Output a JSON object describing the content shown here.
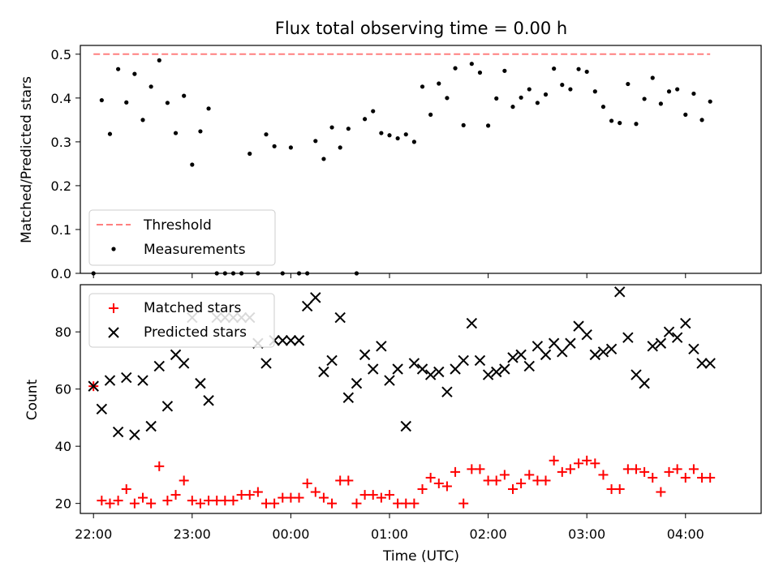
{
  "figure_title": "Flux total observing time = 0.00 h",
  "colors": {
    "threshold": "#ff7f7f",
    "measurement": "#000000",
    "matched": "#ff0000",
    "predicted": "#000000"
  },
  "chart_data": [
    {
      "type": "scatter",
      "ylabel": "Matched/Predicted stars",
      "ylim": [
        0,
        0.52
      ],
      "yticks": [
        "0.0",
        "0.1",
        "0.2",
        "0.3",
        "0.4",
        "0.5"
      ],
      "xlim": [
        "21:52",
        "04:46"
      ],
      "legend_position": "lower-left",
      "threshold": {
        "name": "Threshold",
        "value": 0.5,
        "x": [
          "22:00",
          "04:15"
        ],
        "style": "dashed"
      },
      "series": [
        {
          "name": "Measurements",
          "x": [
            "22:00",
            "22:05",
            "22:10",
            "22:15",
            "22:20",
            "22:25",
            "22:30",
            "22:35",
            "22:40",
            "22:45",
            "22:50",
            "22:55",
            "23:00",
            "23:05",
            "23:10",
            "23:15",
            "23:20",
            "23:25",
            "23:30",
            "23:35",
            "23:40",
            "23:45",
            "23:50",
            "23:55",
            "00:00",
            "00:05",
            "00:10",
            "00:15",
            "00:20",
            "00:25",
            "00:30",
            "00:35",
            "00:40",
            "00:45",
            "00:50",
            "00:55",
            "01:00",
            "01:05",
            "01:10",
            "01:15",
            "01:20",
            "01:25",
            "01:30",
            "01:35",
            "01:40",
            "01:45",
            "01:50",
            "01:55",
            "02:00",
            "02:05",
            "02:10",
            "02:15",
            "02:20",
            "02:25",
            "02:30",
            "02:35",
            "02:40",
            "02:45",
            "02:50",
            "02:55",
            "03:00",
            "03:05",
            "03:10",
            "03:15",
            "03:20",
            "03:25",
            "03:30",
            "03:35",
            "03:40",
            "03:45",
            "03:50",
            "03:55",
            "04:00",
            "04:05",
            "04:10",
            "04:15"
          ],
          "y": [
            0.0,
            0.395,
            0.318,
            0.466,
            0.39,
            0.455,
            0.35,
            0.426,
            0.486,
            0.389,
            0.32,
            0.405,
            0.248,
            0.324,
            0.376,
            0.0,
            0.0,
            0.0,
            0.0,
            0.273,
            0.0,
            0.317,
            0.29,
            0.0,
            0.287,
            0.0,
            0.0,
            0.302,
            0.261,
            0.333,
            0.287,
            0.33,
            0.0,
            0.352,
            0.37,
            0.32,
            0.315,
            0.308,
            0.317,
            0.3,
            0.426,
            0.362,
            0.433,
            0.4,
            0.468,
            0.338,
            0.478,
            0.458,
            0.337,
            0.399,
            0.462,
            0.38,
            0.401,
            0.42,
            0.389,
            0.408,
            0.467,
            0.43,
            0.42,
            0.466,
            0.46,
            0.415,
            0.38,
            0.348,
            0.343,
            0.432,
            0.341,
            0.398,
            0.446,
            0.387,
            0.415,
            0.42,
            0.362,
            0.41,
            0.35,
            0.392
          ],
          "marker": "dot"
        }
      ]
    },
    {
      "type": "scatter",
      "ylabel": "Count",
      "xlabel": "Time (UTC)",
      "ylim": [
        16.5,
        96.5
      ],
      "yticks": [
        "20",
        "40",
        "60",
        "80"
      ],
      "xlim": [
        "21:52",
        "04:46"
      ],
      "xticks": [
        "22:00",
        "23:00",
        "00:00",
        "01:00",
        "02:00",
        "03:00",
        "04:00"
      ],
      "legend_position": "upper-left",
      "series": [
        {
          "name": "Matched stars",
          "marker": "plus",
          "x": [
            "22:00",
            "22:05",
            "22:10",
            "22:15",
            "22:20",
            "22:25",
            "22:30",
            "22:35",
            "22:40",
            "22:45",
            "22:50",
            "22:55",
            "23:00",
            "23:05",
            "23:10",
            "23:15",
            "23:20",
            "23:25",
            "23:30",
            "23:35",
            "23:40",
            "23:45",
            "23:50",
            "23:55",
            "00:00",
            "00:05",
            "00:10",
            "00:15",
            "00:20",
            "00:25",
            "00:30",
            "00:35",
            "00:40",
            "00:45",
            "00:50",
            "00:55",
            "01:00",
            "01:05",
            "01:10",
            "01:15",
            "01:20",
            "01:25",
            "01:30",
            "01:35",
            "01:40",
            "01:45",
            "01:50",
            "01:55",
            "02:00",
            "02:05",
            "02:10",
            "02:15",
            "02:20",
            "02:25",
            "02:30",
            "02:35",
            "02:40",
            "02:45",
            "02:50",
            "02:55",
            "03:00",
            "03:05",
            "03:10",
            "03:15",
            "03:20",
            "03:25",
            "03:30",
            "03:35",
            "03:40",
            "03:45",
            "03:50",
            "03:55",
            "04:00",
            "04:05",
            "04:10",
            "04:15"
          ],
          "y": [
            61,
            21,
            20,
            21,
            25,
            20,
            22,
            20,
            33,
            21,
            23,
            28,
            21,
            20,
            21,
            21,
            21,
            21,
            23,
            23,
            24,
            20,
            20,
            22,
            22,
            22,
            27,
            24,
            22,
            20,
            28,
            28,
            20,
            23,
            23,
            22,
            23,
            20,
            20,
            20,
            25,
            29,
            27,
            26,
            31,
            20,
            32,
            32,
            28,
            28,
            30,
            25,
            27,
            30,
            28,
            28,
            35,
            31,
            32,
            34,
            35,
            34,
            30,
            25,
            25,
            32,
            32,
            31,
            29,
            24,
            31,
            32,
            29,
            32,
            29,
            29
          ],
          "color": "#ff0000"
        },
        {
          "name": "Predicted stars",
          "marker": "x",
          "x": [
            "22:00",
            "22:05",
            "22:10",
            "22:15",
            "22:20",
            "22:25",
            "22:30",
            "22:35",
            "22:40",
            "22:45",
            "22:50",
            "22:55",
            "23:00",
            "23:05",
            "23:10",
            "23:15",
            "23:20",
            "23:25",
            "23:30",
            "23:35",
            "23:40",
            "23:45",
            "23:50",
            "23:55",
            "00:00",
            "00:05",
            "00:10",
            "00:15",
            "00:20",
            "00:25",
            "00:30",
            "00:35",
            "00:40",
            "00:45",
            "00:50",
            "00:55",
            "01:00",
            "01:05",
            "01:10",
            "01:15",
            "01:20",
            "01:25",
            "01:30",
            "01:35",
            "01:40",
            "01:45",
            "01:50",
            "01:55",
            "02:00",
            "02:05",
            "02:10",
            "02:15",
            "02:20",
            "02:25",
            "02:30",
            "02:35",
            "02:40",
            "02:45",
            "02:50",
            "02:55",
            "03:00",
            "03:05",
            "03:10",
            "03:15",
            "03:20",
            "03:25",
            "03:30",
            "03:35",
            "03:40",
            "03:45",
            "03:50",
            "03:55",
            "04:00",
            "04:05",
            "04:10",
            "04:15"
          ],
          "y": [
            61,
            53,
            63,
            45,
            64,
            44,
            63,
            47,
            68,
            54,
            72,
            69,
            85,
            62,
            56,
            85,
            85,
            85,
            85,
            85,
            76,
            69,
            77,
            77,
            77,
            77,
            89,
            92,
            66,
            70,
            85,
            57,
            62,
            72,
            67,
            75,
            63,
            67,
            47,
            69,
            67,
            65,
            66,
            59,
            67,
            70,
            83,
            70,
            65,
            66,
            67,
            71,
            72,
            68,
            75,
            72,
            76,
            73,
            76,
            82,
            79,
            72,
            73,
            74,
            94,
            78,
            65,
            62,
            75,
            76,
            80,
            78,
            83,
            74,
            69,
            69
          ],
          "color": "#000000"
        }
      ]
    }
  ]
}
